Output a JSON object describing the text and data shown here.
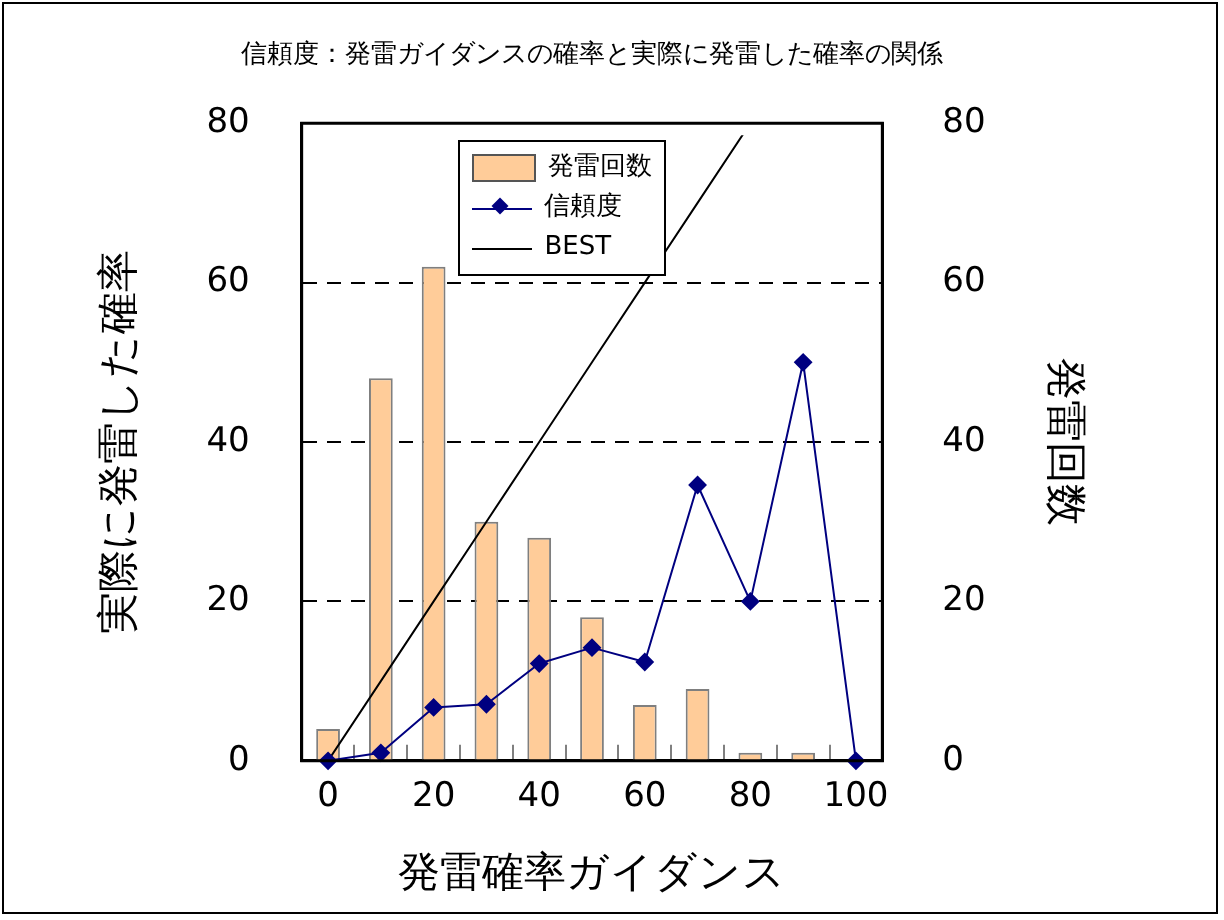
{
  "chart_data": {
    "type": "bar",
    "title": "信頼度：発雷ガイダンスの確率と実際に発雷した確率の関係",
    "xlabel": "発雷確率ガイダンス",
    "ylabel": "実際に発雷した確率",
    "y2label": "発雷回数",
    "categories": [
      "0",
      null,
      "20",
      null,
      "40",
      null,
      "60",
      null,
      "80",
      null,
      "100"
    ],
    "series": [
      {
        "name": "発雷回数",
        "axis": "y2",
        "color": "#ffcc99",
        "values": [
          4,
          48,
          62,
          30,
          28,
          18,
          7,
          9,
          1,
          1,
          0
        ]
      },
      {
        "name": "信頼度",
        "type": "line",
        "color": "#000080",
        "marker": "diamond",
        "values": [
          0,
          1,
          6.7,
          7.1,
          12.2,
          14.2,
          12.4,
          34.6,
          20,
          50,
          0
        ]
      },
      {
        "name": "BEST",
        "type": "line",
        "color": "#000000",
        "marker": "none",
        "values": [
          0,
          10,
          20,
          30,
          40,
          50,
          60,
          70,
          80,
          null,
          null
        ]
      }
    ],
    "ylim": [
      0,
      80
    ],
    "yticks": [
      0,
      20,
      40,
      60,
      80
    ],
    "y2lim": [
      0,
      80
    ],
    "y2ticks": [
      0,
      20,
      40,
      60,
      80
    ],
    "grid": "y",
    "legend": "top"
  }
}
